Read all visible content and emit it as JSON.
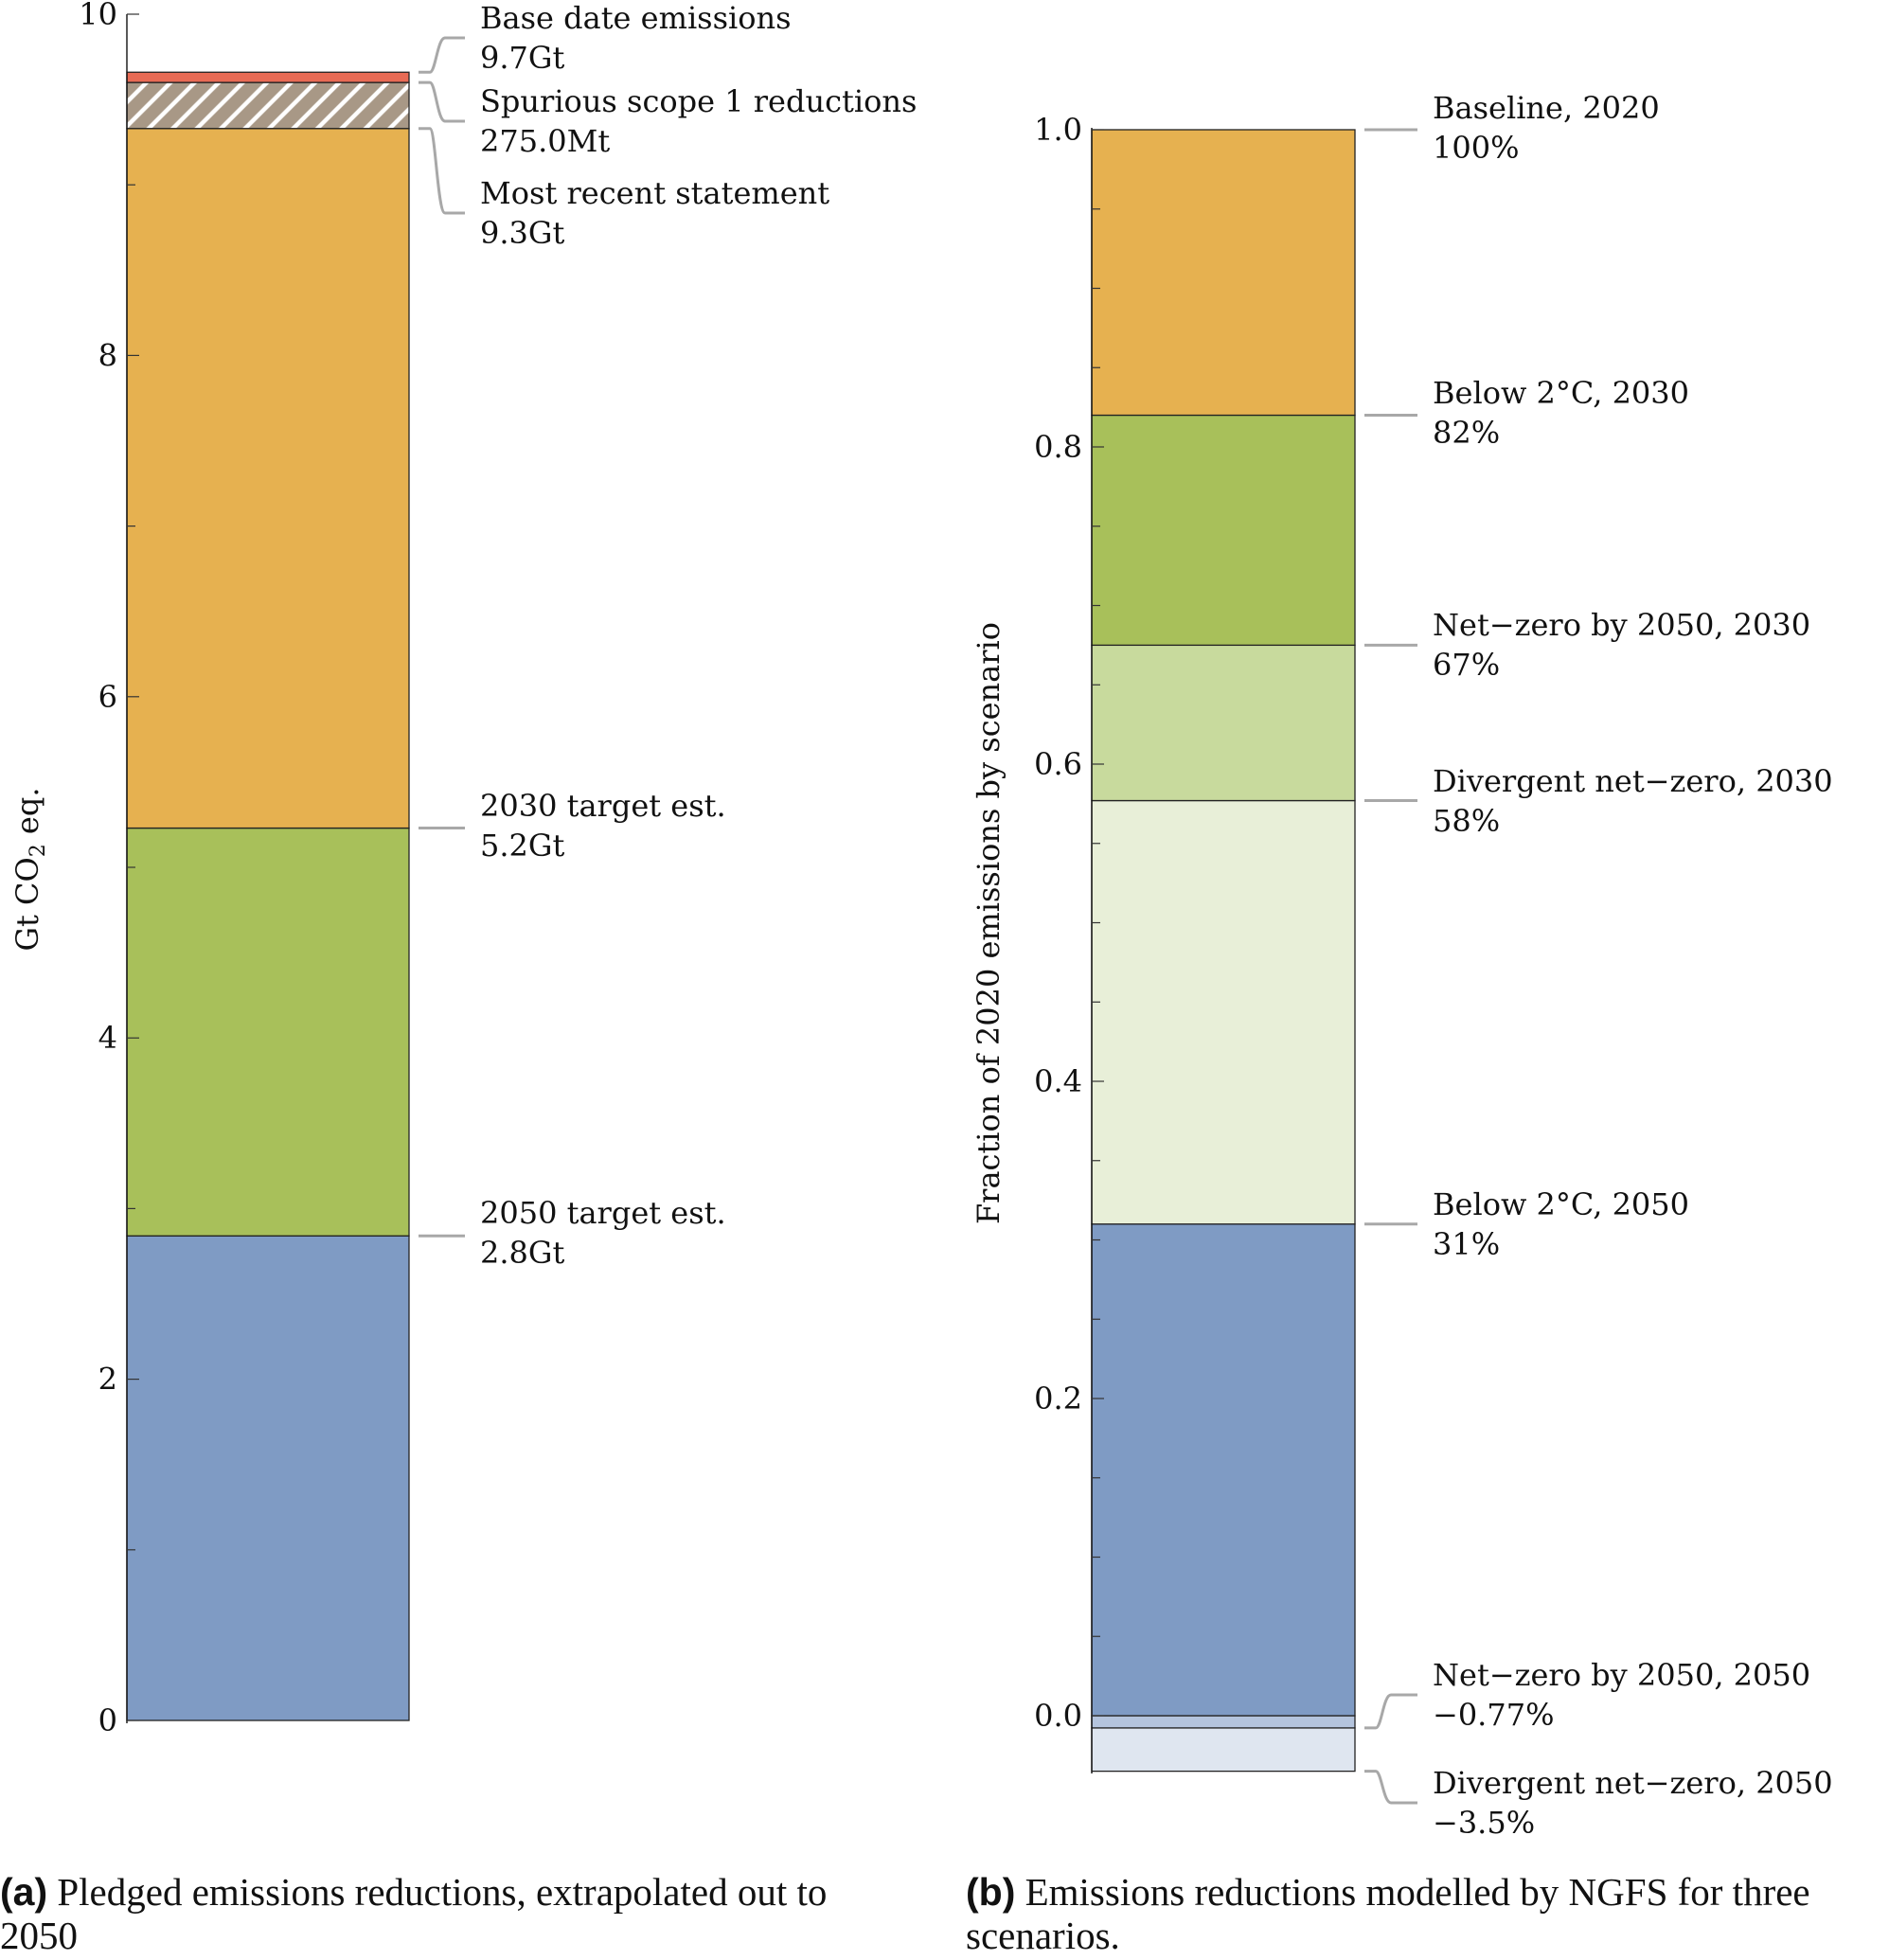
{
  "chart_data": [
    {
      "type": "bar",
      "subtype": "stacked-single-column",
      "panel": "a",
      "ylabel": "Gt CO2 eq.",
      "ylim": [
        0,
        10
      ],
      "yticks": [
        0,
        2,
        4,
        6,
        8,
        10
      ],
      "segments": [
        {
          "name": "2050 target est.",
          "from": 0,
          "to": 2.84,
          "color": "#7f9bc4"
        },
        {
          "name": "2030 target est.",
          "from": 2.84,
          "to": 5.23,
          "color": "#a8c05a"
        },
        {
          "name": "Most recent statement",
          "from": 5.23,
          "to": 9.33,
          "color": "#e6b150"
        },
        {
          "name": "Spurious scope 1 reductions",
          "from": 9.33,
          "to": 9.6,
          "color": "#a89886",
          "pattern": "hatch"
        },
        {
          "name": "Base date emissions",
          "from": 9.6,
          "to": 9.66,
          "color": "#e86b55"
        }
      ],
      "annotations": [
        {
          "label": "Base date emissions",
          "value_text": "9.7Gt",
          "y": 9.66
        },
        {
          "label": "Spurious scope 1 reductions",
          "value_text": "275.0Mt",
          "y": 9.6
        },
        {
          "label": "Most recent statement",
          "value_text": "9.3Gt",
          "y": 9.33
        },
        {
          "label": "2030 target est.",
          "value_text": "5.2Gt",
          "y": 5.23
        },
        {
          "label": "2050 target est.",
          "value_text": "2.8Gt",
          "y": 2.84
        }
      ]
    },
    {
      "type": "bar",
      "subtype": "stacked-single-column",
      "panel": "b",
      "ylabel": "Fraction of 2020 emissions by scenario",
      "ylim": [
        -0.035,
        1.0
      ],
      "yticks": [
        0.0,
        0.2,
        0.4,
        0.6,
        0.8,
        1.0
      ],
      "ytick_labels": [
        "0.0",
        "0.2",
        "0.4",
        "0.6",
        "0.8",
        "1.0"
      ],
      "segments": [
        {
          "name": "Divergent net-zero, 2050",
          "from": -0.035,
          "to": -0.0077,
          "color": "#dfe6f0"
        },
        {
          "name": "Net-zero by 2050, 2050",
          "from": -0.0077,
          "to": 0.0,
          "color": "#b4c4dd"
        },
        {
          "name": "Below 2°C, 2050",
          "from": 0.0,
          "to": 0.31,
          "color": "#7f9bc4"
        },
        {
          "name": "Divergent net-zero, 2030",
          "from": 0.31,
          "to": 0.577,
          "color": "#e8efd8"
        },
        {
          "name": "Net-zero by 2050, 2030",
          "from": 0.577,
          "to": 0.675,
          "color": "#c8da9d"
        },
        {
          "name": "Below 2°C, 2030",
          "from": 0.675,
          "to": 0.82,
          "color": "#a8c05a"
        },
        {
          "name": "Baseline, 2020",
          "from": 0.82,
          "to": 1.0,
          "color": "#e6b150"
        }
      ],
      "annotations": [
        {
          "label": "Baseline, 2020",
          "value_text": "100%",
          "y": 1.0
        },
        {
          "label": "Below 2°C, 2030",
          "value_text": "82%",
          "y": 0.82
        },
        {
          "label": "Net−zero by 2050, 2030",
          "value_text": "67%",
          "y": 0.675
        },
        {
          "label": "Divergent net−zero, 2030",
          "value_text": "58%",
          "y": 0.577
        },
        {
          "label": "Below 2°C, 2050",
          "value_text": "31%",
          "y": 0.31
        },
        {
          "label": "Net−zero by 2050, 2050",
          "value_text": "−0.77%",
          "y": -0.0077
        },
        {
          "label": "Divergent net−zero, 2050",
          "value_text": "−3.5%",
          "y": -0.035
        }
      ]
    }
  ],
  "captions": {
    "a_tag": "(a)",
    "a_text": "Pledged emissions reductions, extrapolated out to 2050",
    "b_tag": "(b)",
    "b_text": "Emissions reductions modelled by NGFS for three scenarios."
  }
}
